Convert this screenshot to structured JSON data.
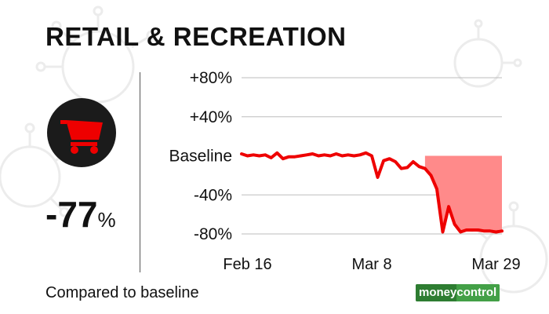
{
  "title": "RETAIL & RECREATION",
  "summary": {
    "value": "-77",
    "unit": "%"
  },
  "footnote": "Compared to baseline",
  "brand": {
    "part1": "money",
    "part2": "control"
  },
  "icon": "shopping-cart-icon",
  "colors": {
    "line": "#ee0000",
    "fill": "#ff8a8a",
    "icon_bg": "#1b1b1b",
    "icon_fg": "#ee0000"
  },
  "chart_data": {
    "type": "area",
    "title": "",
    "xlabel": "",
    "ylabel": "",
    "ylim": [
      -80,
      80
    ],
    "grid": true,
    "y_ticks": [
      {
        "value": 80,
        "label": "+80%"
      },
      {
        "value": 40,
        "label": "+40%"
      },
      {
        "value": 0,
        "label": "Baseline"
      },
      {
        "value": -40,
        "label": "-40%"
      },
      {
        "value": -80,
        "label": "-80%"
      }
    ],
    "x_ticks": [
      {
        "day": 1,
        "label": "Feb 16"
      },
      {
        "day": 22,
        "label": "Mar 8"
      },
      {
        "day": 43,
        "label": "Mar 29"
      }
    ],
    "x_range": [
      0,
      44
    ],
    "series": [
      {
        "x": [
          0,
          1,
          2,
          3,
          4,
          5,
          6,
          7,
          8,
          9,
          10,
          11,
          12,
          13,
          14,
          15,
          16,
          17,
          18,
          19,
          20,
          21,
          22,
          23,
          24,
          25,
          26,
          27,
          28,
          29,
          30,
          31,
          32,
          33,
          34,
          35,
          36,
          37,
          38,
          39,
          40,
          41,
          42,
          43,
          44
        ],
        "values": [
          2,
          0,
          1,
          0,
          1,
          -2,
          3,
          -3,
          -1,
          -1,
          0,
          1,
          2,
          0,
          1,
          0,
          2,
          0,
          1,
          0,
          1,
          3,
          0,
          -22,
          -5,
          -3,
          -6,
          -13,
          -12,
          -6,
          -11,
          -13,
          -20,
          -34,
          -78,
          -52,
          -70,
          -78,
          -76,
          -76,
          -76,
          -77,
          -77,
          -78,
          -77
        ]
      }
    ]
  }
}
